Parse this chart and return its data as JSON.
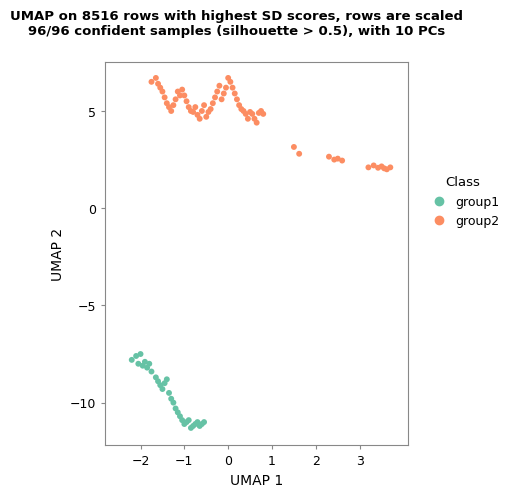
{
  "title": "UMAP on 8516 rows with highest SD scores, rows are scaled\n96/96 confident samples (silhouette > 0.5), with 10 PCs",
  "xlabel": "UMAP 1",
  "ylabel": "UMAP 2",
  "xlim": [
    -2.8,
    4.1
  ],
  "ylim": [
    -12.2,
    7.5
  ],
  "xticks": [
    -2,
    -1,
    0,
    1,
    2,
    3
  ],
  "yticks": [
    -10,
    -5,
    0,
    5
  ],
  "group1_color": "#66C2A5",
  "group2_color": "#FC8D62",
  "group1_x": [
    -2.2,
    -2.1,
    -2.05,
    -2.0,
    -1.95,
    -1.9,
    -1.85,
    -1.8,
    -1.75,
    -1.65,
    -1.6,
    -1.55,
    -1.5,
    -1.45,
    -1.4,
    -1.35,
    -1.3,
    -1.25,
    -1.2,
    -1.15,
    -1.1,
    -1.05,
    -1.0,
    -0.95,
    -0.9,
    -0.85,
    -0.8,
    -0.75,
    -0.7,
    -0.65,
    -0.6,
    -0.55
  ],
  "group1_y": [
    -7.8,
    -7.6,
    -8.0,
    -7.5,
    -8.1,
    -7.9,
    -8.2,
    -8.0,
    -8.4,
    -8.7,
    -8.9,
    -9.1,
    -9.3,
    -9.0,
    -8.8,
    -9.5,
    -9.8,
    -10.0,
    -10.3,
    -10.5,
    -10.7,
    -10.9,
    -11.1,
    -11.0,
    -10.9,
    -11.3,
    -11.2,
    -11.1,
    -11.0,
    -11.2,
    -11.1,
    -11.0
  ],
  "group2_x": [
    -1.75,
    -1.65,
    -1.6,
    -1.55,
    -1.5,
    -1.45,
    -1.4,
    -1.35,
    -1.3,
    -1.25,
    -1.2,
    -1.15,
    -1.1,
    -1.05,
    -1.0,
    -0.95,
    -0.9,
    -0.85,
    -0.8,
    -0.75,
    -0.7,
    -0.65,
    -0.6,
    -0.55,
    -0.5,
    -0.45,
    -0.4,
    -0.35,
    -0.3,
    -0.25,
    -0.2,
    -0.15,
    -0.1,
    -0.05,
    0.0,
    0.05,
    0.1,
    0.15,
    0.2,
    0.25,
    0.3,
    0.35,
    0.4,
    0.45,
    0.5,
    0.55,
    0.6,
    0.65,
    0.7,
    0.75,
    0.8,
    1.5,
    1.62,
    2.3,
    2.42,
    2.5,
    2.6,
    3.2,
    3.32,
    3.42,
    3.5,
    3.56,
    3.62,
    3.7
  ],
  "group2_y": [
    6.5,
    6.7,
    6.4,
    6.2,
    6.0,
    5.7,
    5.4,
    5.2,
    5.0,
    5.3,
    5.6,
    6.0,
    5.8,
    6.1,
    5.8,
    5.5,
    5.2,
    5.0,
    4.95,
    5.2,
    4.8,
    4.6,
    5.0,
    5.3,
    4.7,
    4.95,
    5.1,
    5.4,
    5.7,
    6.0,
    6.3,
    5.6,
    5.9,
    6.2,
    6.7,
    6.5,
    6.2,
    5.9,
    5.6,
    5.3,
    5.1,
    5.0,
    4.85,
    4.6,
    4.95,
    4.85,
    4.6,
    4.4,
    4.9,
    5.0,
    4.85,
    3.15,
    2.8,
    2.65,
    2.5,
    2.55,
    2.45,
    2.1,
    2.2,
    2.08,
    2.15,
    2.05,
    2.0,
    2.1
  ],
  "background_color": "#FFFFFF",
  "legend_title": "Class",
  "legend_labels": [
    "group1",
    "group2"
  ]
}
